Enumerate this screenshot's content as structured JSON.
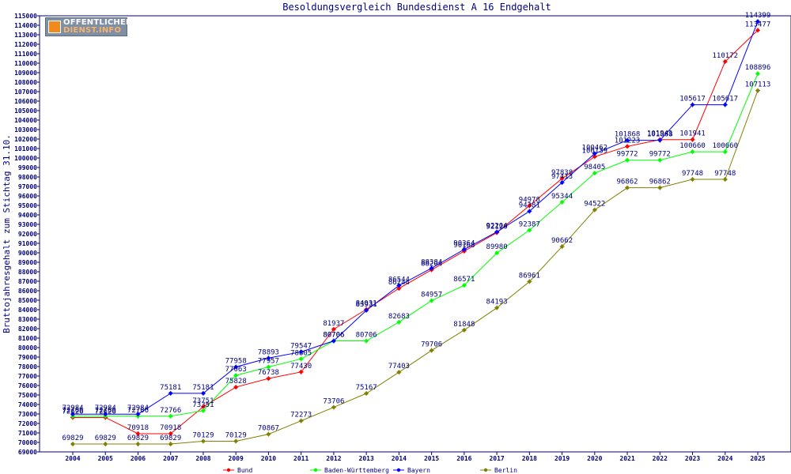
{
  "chart_data": {
    "type": "line",
    "title": "Besoldungsvergleich Bundesdienst A 16 Endgehalt",
    "xlabel": "",
    "ylabel": "Bruttojahresgehalt zum Stichtag 31.10.",
    "ylim": [
      69000,
      115000
    ],
    "ytick_step": 1000,
    "grid": false,
    "legend_position": "bottom",
    "x": [
      "2004",
      "2005",
      "2006",
      "2007",
      "2008",
      "2009",
      "2010",
      "2011",
      "2012",
      "2013",
      "2014",
      "2015",
      "2016",
      "2017",
      "2018",
      "2019",
      "2020",
      "2021",
      "2022",
      "2023",
      "2024",
      "2025"
    ],
    "series": [
      {
        "name": "Bund",
        "color": "#ff0000",
        "values": [
          72626,
          72626,
          70918,
          70918,
          73751,
          75828,
          76738,
          77430,
          81937,
          84031,
          86244,
          88204,
          90168,
          92120,
          94978,
          97838,
          100139,
          101223,
          101941,
          101941,
          110172,
          113477
        ]
      },
      {
        "name": "Baden-Württemberg",
        "color": "#00ff00",
        "values": [
          72766,
          72766,
          72766,
          72766,
          73351,
          77063,
          77957,
          78805,
          80706,
          80706,
          82683,
          84957,
          86571,
          89980,
          92387,
          95344,
          98405,
          99772,
          99772,
          100660,
          100660,
          108896
        ]
      },
      {
        "name": "Bayern",
        "color": "#0000ff",
        "values": [
          72984,
          72984,
          72984,
          75181,
          75181,
          77958,
          78893,
          79547,
          80706,
          83931,
          86544,
          88384,
          90364,
          92204,
          94381,
          97413,
          100462,
          101868,
          101868,
          105617,
          105617,
          114399
        ]
      },
      {
        "name": "Berlin",
        "color": "#808000",
        "values": [
          69829,
          69829,
          69829,
          69829,
          70129,
          70129,
          70867,
          72273,
          73706,
          75167,
          77403,
          79706,
          81848,
          84193,
          86961,
          90662,
          94522,
          96862,
          96862,
          97748,
          97748,
          107113
        ]
      }
    ]
  },
  "logo": {
    "line1": "OFFENTLICHER",
    "line2": "DIENST.INFO",
    "icon": "logo-mark-icon"
  }
}
